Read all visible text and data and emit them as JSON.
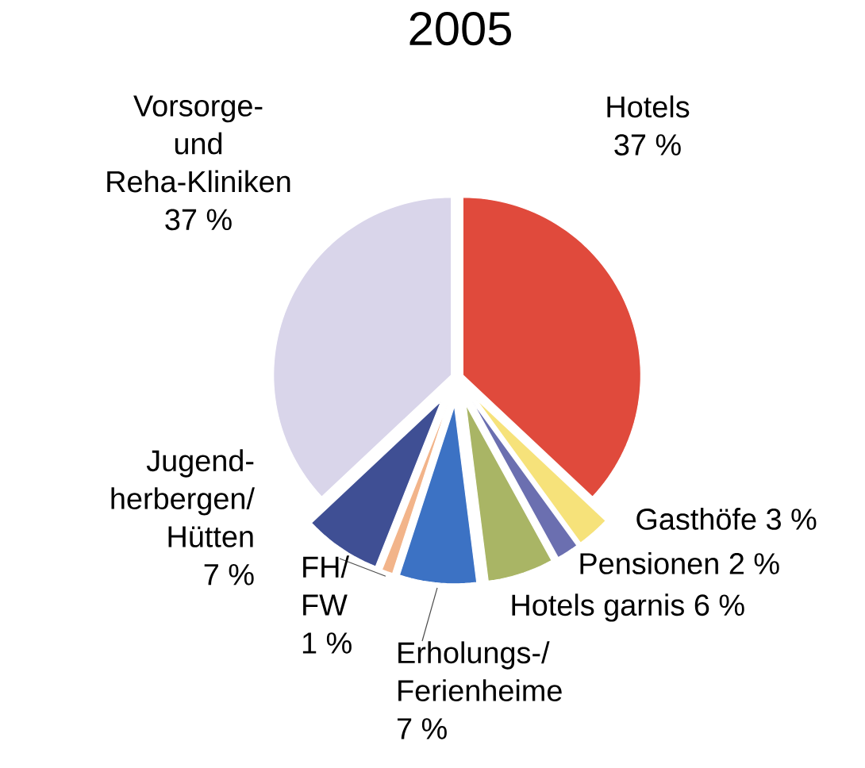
{
  "chart_data": {
    "type": "pie",
    "title": "2005",
    "categories": [
      "Hotels",
      "Gasthöfe",
      "Pensionen",
      "Hotels garnis",
      "Erholungs-/ Ferienheime",
      "FH/ FW",
      "Jugend- herbergen/ Hütten",
      "Vorsorge- und Reha-Kliniken"
    ],
    "values": [
      37,
      3,
      2,
      6,
      7,
      1,
      7,
      37
    ],
    "value_labels": [
      "37 %",
      "3 %",
      "2 %",
      "6 %",
      "7 %",
      "1 %",
      "7 %",
      "37 %"
    ],
    "colors": [
      "#e04a3c",
      "#f6e27a",
      "#6b6fb0",
      "#a9b565",
      "#3c72c4",
      "#f2b48a",
      "#3f4f94",
      "#d9d5ea"
    ]
  }
}
